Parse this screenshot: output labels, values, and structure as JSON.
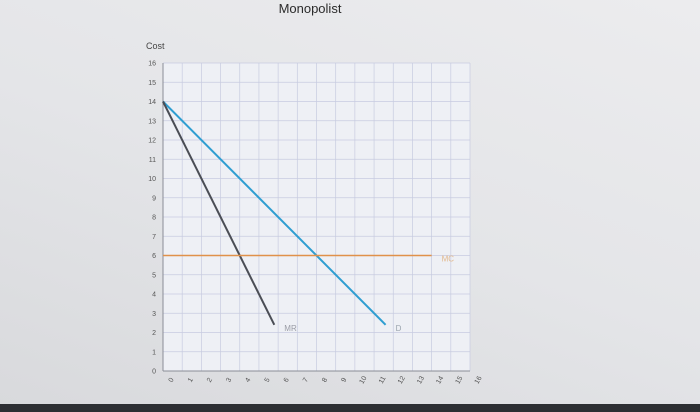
{
  "chart_data": {
    "type": "line",
    "title": "Monopolist",
    "ylabel": "Cost",
    "xlabel": "",
    "xlim": [
      0,
      16
    ],
    "ylim": [
      0,
      16
    ],
    "y_ticks": [
      "16",
      "15",
      "14",
      "13",
      "12",
      "11",
      "10",
      "9",
      "8",
      "7",
      "6",
      "5",
      "4",
      "3",
      "2",
      "1",
      "0"
    ],
    "x_ticks": [
      "0",
      "1",
      "2",
      "3",
      "4",
      "5",
      "6",
      "7",
      "8",
      "9",
      "10",
      "11",
      "12",
      "13",
      "14",
      "15",
      "16"
    ],
    "grid": true,
    "series": [
      {
        "name": "D",
        "color": "#2f9ed1",
        "points": [
          [
            0,
            14
          ],
          [
            11.6,
            2.4
          ]
        ]
      },
      {
        "name": "MR",
        "color": "#4a4d55",
        "points": [
          [
            0,
            14
          ],
          [
            5.8,
            2.4
          ]
        ]
      },
      {
        "name": "MC",
        "color": "#e0914a",
        "points": [
          [
            0,
            6
          ],
          [
            14,
            6
          ]
        ]
      }
    ]
  }
}
